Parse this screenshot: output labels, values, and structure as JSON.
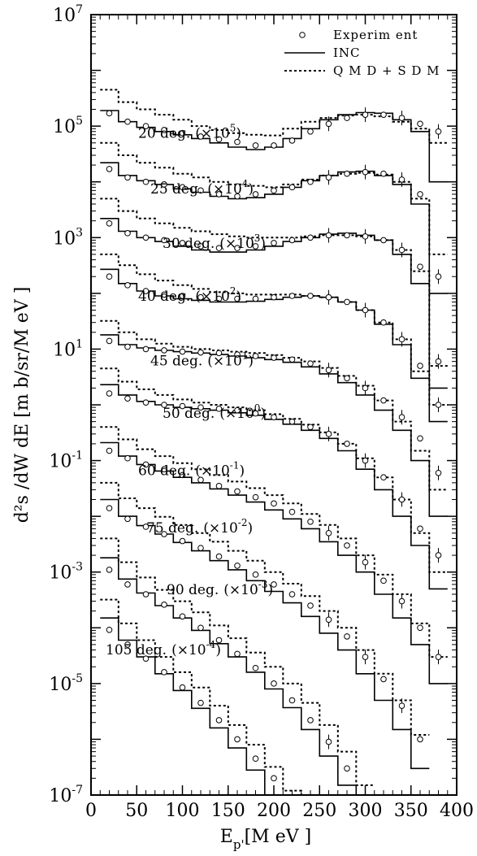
{
  "chart_data": {
    "type": "line",
    "xlabel_main": "E",
    "xlabel_sub": "p'",
    "xlabel_unit": "[M eV ]",
    "ylabel": "d²s /dW dE [m b/sr/M eV ]",
    "xlim": [
      0,
      400
    ],
    "ylim_log10": [
      -7,
      7
    ],
    "y_scale": "log",
    "x_ticks": [
      "0",
      "50",
      "100",
      "150",
      "200",
      "250",
      "300",
      "350",
      "400"
    ],
    "y_ticks": [
      {
        "base": "10",
        "exp": "7",
        "value": 10000000.0
      },
      {
        "base": "10",
        "exp": "5",
        "value": 100000.0
      },
      {
        "base": "10",
        "exp": "3",
        "value": 1000.0
      },
      {
        "base": "10",
        "exp": "1",
        "value": 10.0
      },
      {
        "base": "10",
        "exp": "-1",
        "value": 0.1
      },
      {
        "base": "10",
        "exp": "-3",
        "value": 0.001
      },
      {
        "base": "10",
        "exp": "-5",
        "value": 1e-05
      },
      {
        "base": "10",
        "exp": "-7",
        "value": 1e-07
      }
    ],
    "legend": {
      "position": "top-right",
      "entries": [
        {
          "label": "Experim ent",
          "style": "circle"
        },
        {
          "label": "INC",
          "style": "solid"
        },
        {
          "label": "Q M D + S D M",
          "style": "dotted"
        }
      ]
    },
    "series": [
      {
        "angle": "20 deg.",
        "factor": "(×10",
        "exp": "5",
        "close": ")",
        "x": [
          20,
          40,
          60,
          80,
          100,
          120,
          140,
          160,
          180,
          200,
          220,
          240,
          260,
          280,
          300,
          320,
          340,
          360,
          380
        ],
        "experiment": [
          170000.0,
          120000.0,
          100000.0,
          85000.0,
          75000.0,
          65000.0,
          58000.0,
          52000.0,
          45000.0,
          45000.0,
          55000.0,
          80000.0,
          110000.0,
          140000.0,
          160000.0,
          160000.0,
          140000.0,
          110000.0,
          80000.0
        ],
        "inc": [
          190000.0,
          120000.0,
          95000.0,
          80000.0,
          70000.0,
          60000.0,
          50000.0,
          42000.0,
          38000.0,
          42000.0,
          60000.0,
          90000.0,
          130000.0,
          160000.0,
          175000.0,
          170000.0,
          130000.0,
          80000.0,
          10000.0
        ],
        "qmd": [
          450000.0,
          270000.0,
          200000.0,
          160000.0,
          130000.0,
          100000.0,
          85000.0,
          75000.0,
          70000.0,
          68000.0,
          90000.0,
          120000.0,
          140000.0,
          155000.0,
          160000.0,
          150000.0,
          120000.0,
          90000.0,
          50000.0
        ]
      },
      {
        "angle": "25 deg.",
        "factor": "(×10",
        "exp": "4",
        "close": ")",
        "x": [
          20,
          40,
          60,
          80,
          100,
          120,
          140,
          160,
          180,
          200,
          220,
          240,
          260,
          280,
          300,
          320,
          340,
          360,
          380
        ],
        "experiment": [
          17000.0,
          12000.0,
          10000.0,
          9000.0,
          8000.0,
          7000.0,
          6000.0,
          5500.0,
          6000.0,
          7000.0,
          8000.0,
          10000.0,
          12000.0,
          14000.0,
          15000.0,
          14000.0,
          11000.0,
          6000.0,
          200.0
        ],
        "inc": [
          22000.0,
          13000.0,
          10500.0,
          9000.0,
          7500.0,
          6500.0,
          5500.0,
          5000.0,
          5200.0,
          6000.0,
          8000.0,
          10500.0,
          13000.0,
          15000.0,
          15500.0,
          13000.0,
          9000.0,
          4000.0,
          100.0
        ],
        "qmd": [
          50000.0,
          30000.0,
          22000.0,
          18000.0,
          14000.0,
          12000.0,
          10000.0,
          9000.0,
          8500.0,
          8000.0,
          9000.0,
          11000.0,
          13000.0,
          14000.0,
          14500.0,
          13500.0,
          10000.0,
          5000.0,
          500.0
        ]
      },
      {
        "angle": "30 deg.",
        "factor": "(×10",
        "exp": "3",
        "close": ")",
        "x": [
          20,
          40,
          60,
          80,
          100,
          120,
          140,
          160,
          180,
          200,
          220,
          240,
          260,
          280,
          300,
          320,
          340,
          360,
          380
        ],
        "experiment": [
          1800.0,
          1200.0,
          1000.0,
          900.0,
          800.0,
          700.0,
          650.0,
          650.0,
          700.0,
          800.0,
          900.0,
          1000.0,
          1100.0,
          1100.0,
          1050.0,
          900.0,
          600.0,
          300.0,
          6
        ],
        "inc": [
          2200.0,
          1300.0,
          1000.0,
          850.0,
          700.0,
          600.0,
          550.0,
          550.0,
          600.0,
          700.0,
          850.0,
          1000.0,
          1150.0,
          1200.0,
          1100.0,
          900.0,
          500.0,
          150.0,
          2
        ],
        "qmd": [
          5000.0,
          3000.0,
          2200.0,
          1800.0,
          1500.0,
          1300.0,
          1150.0,
          1050.0,
          1000.0,
          1000.0,
          1000.0,
          1050.0,
          1100.0,
          1100.0,
          1050.0,
          900.0,
          600.0,
          250.0,
          5
        ]
      },
      {
        "angle": "40 deg.",
        "factor": "(×10",
        "exp": "2",
        "close": ")",
        "x": [
          20,
          40,
          60,
          80,
          100,
          120,
          140,
          160,
          180,
          200,
          220,
          240,
          260,
          280,
          300,
          320,
          340,
          360,
          380
        ],
        "experiment": [
          200.0,
          140.0,
          110.0,
          95.0,
          90.0,
          85.0,
          80.0,
          80.0,
          80.0,
          85.0,
          90.0,
          90.0,
          85.0,
          70.0,
          50.0,
          30.0,
          15.0,
          5,
          1
        ],
        "inc": [
          270.0,
          150.0,
          110.0,
          90.0,
          80.0,
          75.0,
          70.0,
          70.0,
          72.0,
          78.0,
          85.0,
          90.0,
          85.0,
          70.0,
          50.0,
          28.0,
          12.0,
          3,
          0.5
        ],
        "qmd": [
          500.0,
          320.0,
          220.0,
          170.0,
          140.0,
          120.0,
          105.0,
          100.0,
          95.0,
          95.0,
          95.0,
          90.0,
          85.0,
          70.0,
          50.0,
          30.0,
          15.0,
          4,
          1
        ]
      },
      {
        "angle": "45 deg.",
        "factor": "(×10",
        "exp": "1",
        "close": ")",
        "x": [
          20,
          40,
          60,
          80,
          100,
          120,
          140,
          160,
          180,
          200,
          220,
          240,
          260,
          280,
          300,
          320,
          340,
          360,
          380
        ],
        "experiment": [
          14.0,
          11.0,
          10.0,
          9.5,
          9,
          8.7,
          8.5,
          8,
          7.5,
          7,
          6.5,
          5.5,
          4.2,
          3,
          2,
          1.2,
          0.6,
          0.25,
          0.06
        ],
        "inc": [
          18.0,
          12.0,
          10.5,
          9.5,
          9,
          8.5,
          8,
          7.5,
          7,
          6.5,
          5.8,
          4.8,
          3.6,
          2.5,
          1.5,
          0.8,
          0.35,
          0.1,
          0.01
        ],
        "qmd": [
          32.0,
          20.0,
          15.0,
          12.5,
          11.0,
          10.0,
          9.5,
          9,
          8.5,
          7.8,
          7,
          6,
          4.6,
          3.3,
          2.2,
          1.2,
          0.5,
          0.15,
          0.03
        ]
      },
      {
        "angle": "50 deg.",
        "factor": "(×10",
        "exp": "0",
        "close": ")",
        "x": [
          20,
          40,
          60,
          80,
          100,
          120,
          140,
          160,
          180,
          200,
          220,
          240,
          260,
          280,
          300,
          320,
          340,
          360,
          380
        ],
        "experiment": [
          1.6,
          1.3,
          1.1,
          1,
          0.95,
          0.9,
          0.85,
          0.8,
          0.7,
          0.6,
          0.5,
          0.4,
          0.3,
          0.2,
          0.1,
          0.05,
          0.02,
          0.006,
          0.002
        ],
        "inc": [
          2.3,
          1.5,
          1.15,
          1,
          0.9,
          0.85,
          0.8,
          0.72,
          0.65,
          0.55,
          0.45,
          0.35,
          0.25,
          0.15,
          0.07,
          0.03,
          0.01,
          0.003,
          0.0005
        ],
        "qmd": [
          4.5,
          2.6,
          1.9,
          1.5,
          1.25,
          1.1,
          1,
          0.9,
          0.8,
          0.68,
          0.56,
          0.44,
          0.32,
          0.2,
          0.11,
          0.05,
          0.02,
          0.005,
          0.001
        ]
      },
      {
        "angle": "60 deg.",
        "factor": "(×10",
        "exp": "-1",
        "close": ")",
        "x": [
          20,
          40,
          60,
          80,
          100,
          120,
          140,
          160,
          180,
          200,
          220,
          240,
          260,
          280,
          300,
          320,
          340,
          360,
          380
        ],
        "experiment": [
          0.15,
          0.11,
          0.085,
          0.07,
          0.055,
          0.045,
          0.035,
          0.028,
          0.022,
          0.017,
          0.012,
          0.008,
          0.005,
          0.003,
          0.0015,
          0.0007,
          0.0003,
          0.0001,
          3e-05
        ],
        "inc": [
          0.21,
          0.12,
          0.085,
          0.065,
          0.05,
          0.04,
          0.031,
          0.024,
          0.018,
          0.013,
          0.009,
          0.006,
          0.0035,
          0.002,
          0.001,
          0.0004,
          0.00015,
          5e-05,
          1e-05
        ],
        "qmd": [
          0.4,
          0.24,
          0.16,
          0.12,
          0.09,
          0.07,
          0.055,
          0.042,
          0.032,
          0.024,
          0.017,
          0.011,
          0.007,
          0.004,
          0.002,
          0.0009,
          0.0004,
          0.00012,
          3e-05
        ]
      },
      {
        "angle": "75 deg.",
        "factor": "(×10",
        "exp": "-2",
        "close": ")",
        "x": [
          20,
          40,
          60,
          80,
          100,
          120,
          140,
          160,
          180,
          200,
          220,
          240,
          260,
          280,
          300,
          320,
          340,
          360
        ],
        "experiment": [
          0.014,
          0.009,
          0.0065,
          0.0048,
          0.0036,
          0.0027,
          0.0019,
          0.0013,
          0.0009,
          0.0006,
          0.0004,
          0.00025,
          0.00014,
          7e-05,
          3e-05,
          1.2e-05,
          4e-06,
          1e-06
        ],
        "inc": [
          0.02,
          0.01,
          0.0068,
          0.0048,
          0.0034,
          0.0024,
          0.0016,
          0.0011,
          0.0007,
          0.00045,
          0.00028,
          0.00016,
          8e-05,
          4e-05,
          1.5e-05,
          5e-06,
          1.5e-06,
          3e-07
        ],
        "qmd": [
          0.04,
          0.021,
          0.014,
          0.0098,
          0.007,
          0.005,
          0.0035,
          0.0024,
          0.0016,
          0.001,
          0.00062,
          0.00037,
          0.0002,
          0.0001,
          4e-05,
          1.5e-05,
          5e-06,
          1.2e-06
        ]
      },
      {
        "angle": "90 deg.",
        "factor": "(×10",
        "exp": "-3",
        "close": ")",
        "x": [
          20,
          40,
          60,
          80,
          100,
          120,
          140,
          160,
          180,
          200,
          220,
          240,
          260,
          280,
          300
        ],
        "experiment": [
          0.0011,
          0.0006,
          0.0004,
          0.00026,
          0.00016,
          0.0001,
          6e-05,
          3.4e-05,
          1.9e-05,
          1e-05,
          5e-06,
          2.2e-06,
          9e-07,
          3e-07,
          1e-07
        ],
        "inc": [
          0.0018,
          0.00075,
          0.00042,
          0.00025,
          0.00015,
          9e-05,
          5.2e-05,
          3e-05,
          1.6e-05,
          8e-06,
          3.7e-06,
          1.5e-06,
          5e-07,
          1.5e-07,
          3e-08
        ],
        "qmd": [
          0.004,
          0.0015,
          0.0008,
          0.00048,
          0.0003,
          0.00019,
          0.00011,
          6.5e-05,
          3.6e-05,
          2e-05,
          1e-05,
          4.5e-06,
          1.8e-06,
          6e-07,
          1.5e-07
        ]
      },
      {
        "angle": "105 deg.",
        "factor": "(×10",
        "exp": "-4",
        "close": ")",
        "x": [
          20,
          40,
          60,
          80,
          100,
          120,
          140,
          160,
          180,
          200,
          220,
          240,
          250
        ],
        "experiment": [
          9.2e-05,
          5e-05,
          2.8e-05,
          1.6e-05,
          8.5e-06,
          4.5e-06,
          2.2e-06,
          1e-06,
          4.5e-07,
          2e-07,
          7e-08,
          2e-08,
          1e-08
        ],
        "inc": [
          0.00015,
          6e-05,
          3e-05,
          1.5e-05,
          7.5e-06,
          3.6e-06,
          1.6e-06,
          7e-07,
          2.8e-07,
          1e-07,
          3e-08,
          8e-09,
          4e-09
        ],
        "qmd": [
          0.00032,
          0.00012,
          6e-05,
          3e-05,
          1.6e-05,
          8.5e-06,
          4e-06,
          1.8e-06,
          8e-07,
          3.2e-07,
          1.2e-07,
          4e-08,
          2e-08
        ]
      }
    ]
  }
}
